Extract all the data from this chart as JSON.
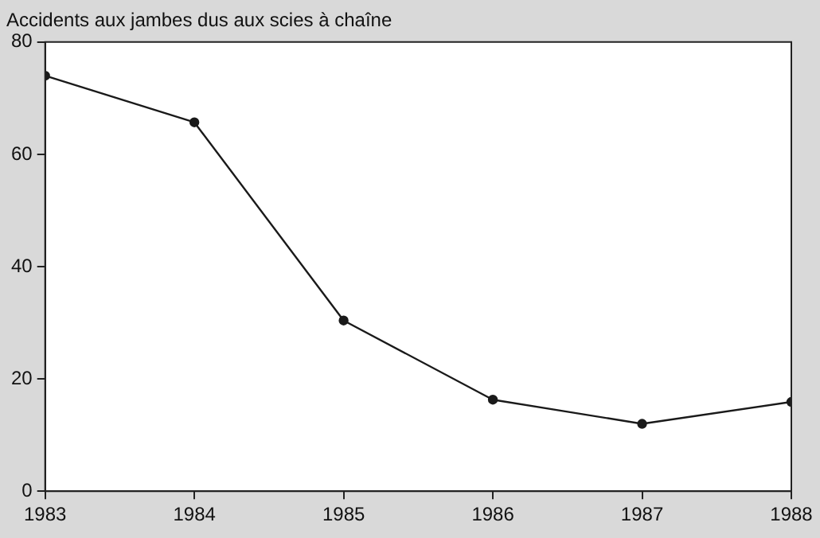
{
  "chart_data": {
    "type": "line",
    "title": "Accidents aux jambes dus aux scies à chaîne",
    "x": [
      1983,
      1984,
      1985,
      1986,
      1987,
      1988
    ],
    "series": [
      {
        "color": "#1a1a1a",
        "values": [
          74,
          65.7,
          30.4,
          16.3,
          12,
          15.9
        ]
      }
    ],
    "xlim": [
      1983,
      1988
    ],
    "xticks": [
      1983,
      1984,
      1985,
      1986,
      1987,
      1988
    ],
    "ylim": [
      0,
      80
    ],
    "yticks": [
      0,
      20,
      40,
      60,
      80
    ],
    "grid": false,
    "legend": false,
    "marker": "circle",
    "line_style": "solid"
  }
}
